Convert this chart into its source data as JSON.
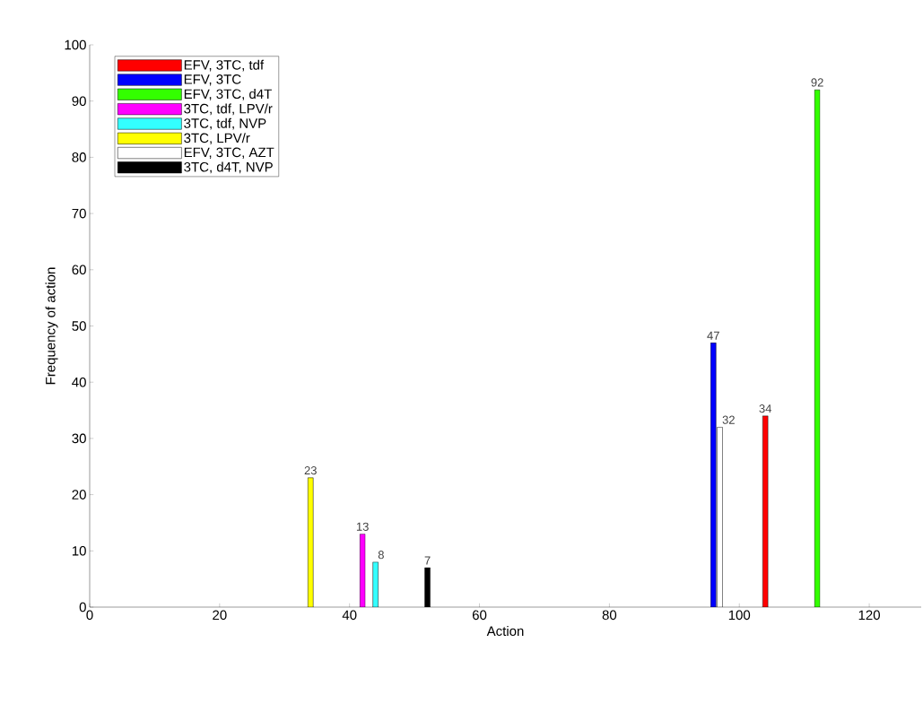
{
  "chart_data": {
    "type": "bar",
    "xlabel": "Action",
    "ylabel": "Frequency of action",
    "xlim": [
      0,
      128
    ],
    "xticks": [
      0,
      20,
      40,
      60,
      80,
      100,
      120
    ],
    "ylim": [
      0,
      100
    ],
    "yticks": [
      0,
      10,
      20,
      30,
      40,
      50,
      60,
      70,
      80,
      90,
      100
    ],
    "grid": false,
    "legend": "top left",
    "data_labels": true,
    "series": [
      {
        "name": "EFV, 3TC, tdf",
        "color": "#ff0000",
        "x": [
          104
        ],
        "values": [
          34
        ]
      },
      {
        "name": "EFV, 3TC",
        "color": "#0000ff",
        "x": [
          96
        ],
        "values": [
          47
        ]
      },
      {
        "name": "EFV, 3TC, d4T",
        "color": "#33ff00",
        "x": [
          112
        ],
        "values": [
          92
        ]
      },
      {
        "name": "3TC, tdf, LPV/r",
        "color": "#ff00ff",
        "x": [
          42
        ],
        "values": [
          13
        ]
      },
      {
        "name": "3TC, tdf, NVP",
        "color": "#33ffff",
        "x": [
          44
        ],
        "values": [
          8
        ]
      },
      {
        "name": "3TC, LPV/r",
        "color": "#ffff00",
        "x": [
          34
        ],
        "values": [
          23
        ]
      },
      {
        "name": "EFV, 3TC, AZT",
        "color": "#ffffff",
        "x": [
          97
        ],
        "values": [
          32
        ]
      },
      {
        "name": "3TC, d4T, NVP",
        "color": "#000000",
        "x": [
          52
        ],
        "values": [
          7
        ]
      }
    ]
  }
}
